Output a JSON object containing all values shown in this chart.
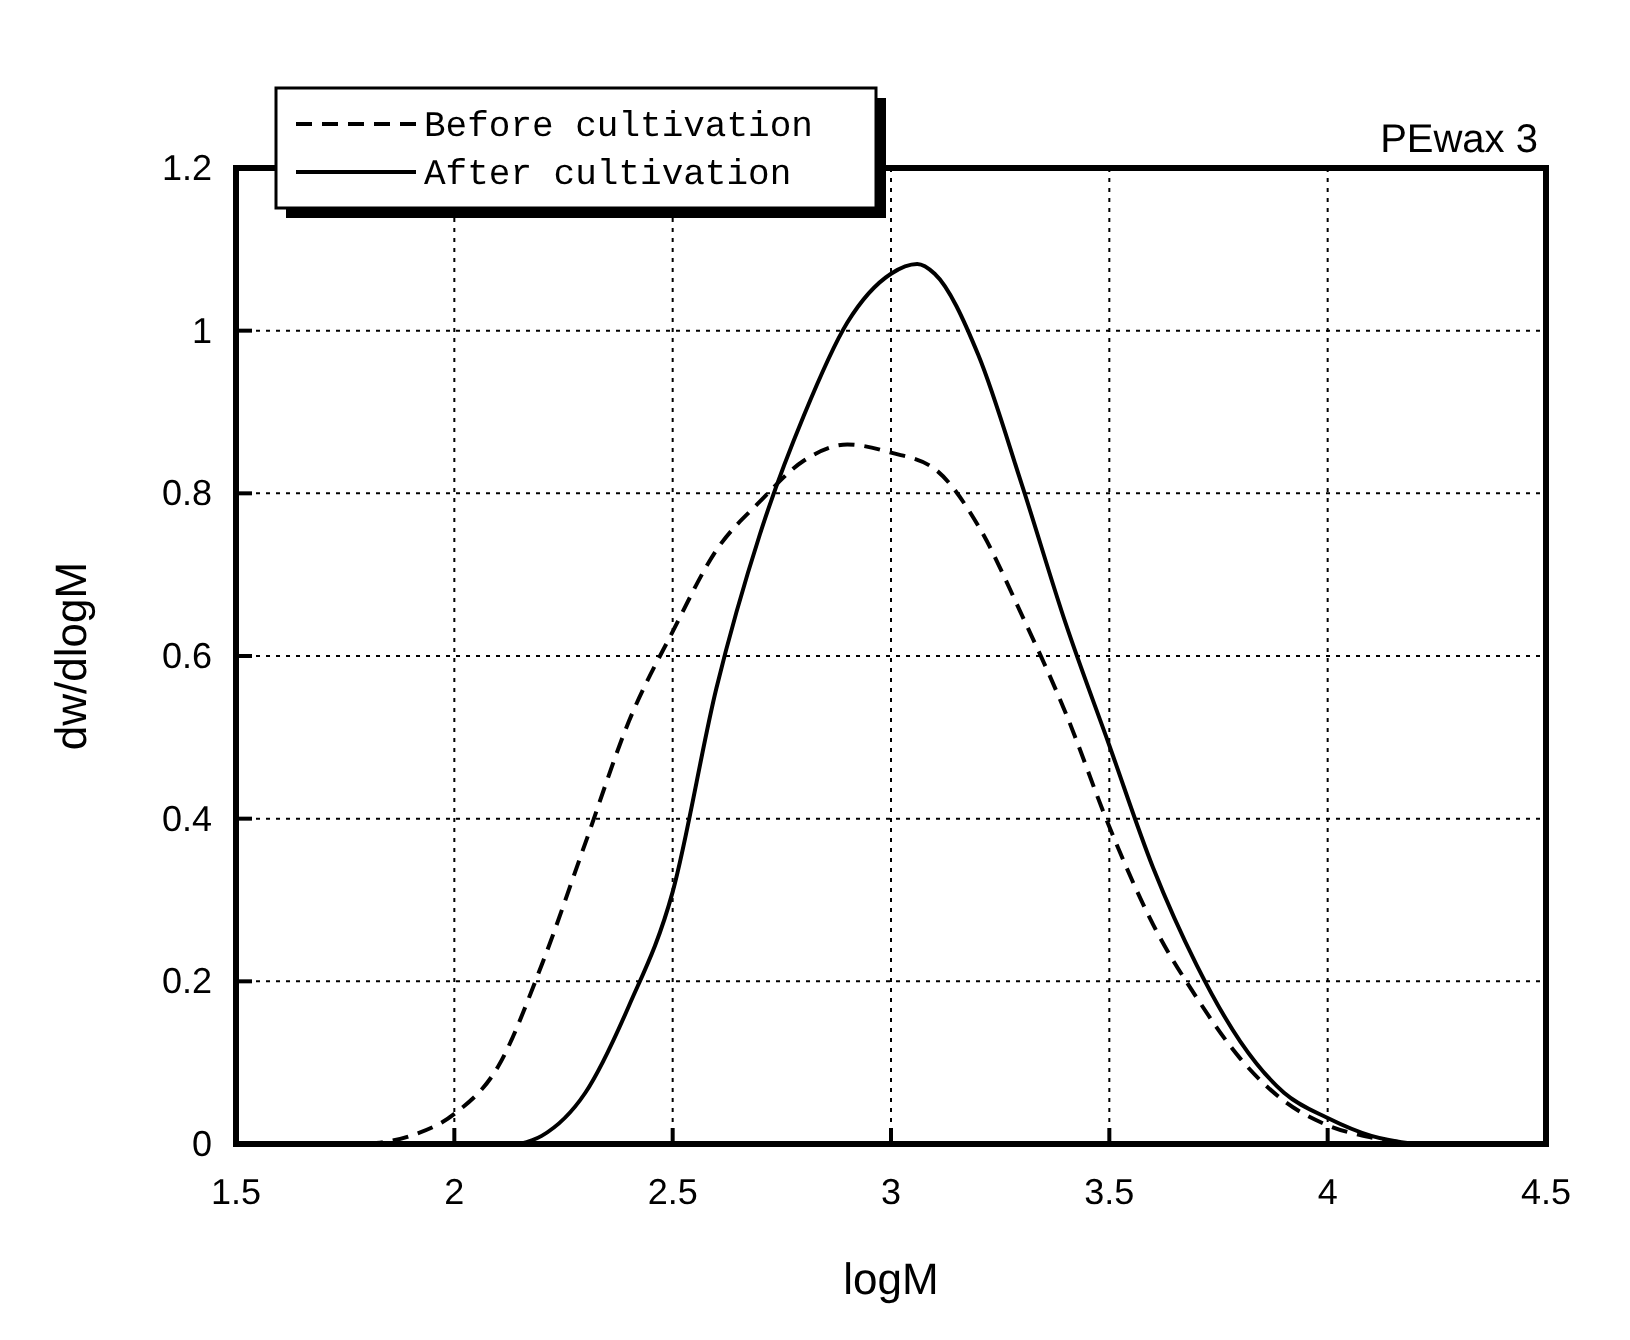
{
  "chart_data": {
    "type": "line",
    "title": "PEwax 3",
    "xlabel": "logM",
    "ylabel": "dw/dlogM",
    "xlim": [
      1.5,
      4.5
    ],
    "xticks": [
      1.5,
      2,
      2.5,
      3,
      3.5,
      4,
      4.5
    ],
    "ylim": [
      0,
      1.2
    ],
    "yticks": [
      0,
      0.2,
      0.4,
      0.6,
      0.8,
      1,
      1.2
    ],
    "grid": true,
    "legend": "top left",
    "marker": "none",
    "series": [
      {
        "name": "Before cultivation",
        "color": "#000000",
        "line_style": "dashed",
        "x": [
          1.8,
          1.9,
          2.0,
          2.1,
          2.2,
          2.3,
          2.4,
          2.5,
          2.6,
          2.7,
          2.8,
          2.9,
          3.0,
          3.1,
          3.2,
          3.3,
          3.4,
          3.5,
          3.6,
          3.7,
          3.8,
          3.9,
          4.0,
          4.1,
          4.2
        ],
        "values": [
          0,
          0.01,
          0.037,
          0.095,
          0.22,
          0.37,
          0.52,
          0.63,
          0.73,
          0.79,
          0.84,
          0.86,
          0.85,
          0.83,
          0.76,
          0.65,
          0.53,
          0.39,
          0.27,
          0.18,
          0.105,
          0.053,
          0.023,
          0.008,
          0
        ]
      },
      {
        "name": "After cultivation",
        "color": "#000000",
        "line_style": "solid",
        "x": [
          2.15,
          2.2,
          2.3,
          2.4,
          2.5,
          2.6,
          2.7,
          2.8,
          2.9,
          3.0,
          3.06,
          3.1,
          3.2,
          3.3,
          3.4,
          3.5,
          3.6,
          3.7,
          3.8,
          3.9,
          4.0,
          4.1,
          4.2
        ],
        "values": [
          0,
          0.01,
          0.063,
          0.17,
          0.31,
          0.56,
          0.75,
          0.895,
          1.01,
          1.07,
          1.082,
          1.07,
          0.97,
          0.81,
          0.64,
          0.49,
          0.34,
          0.22,
          0.126,
          0.063,
          0.032,
          0.01,
          0
        ]
      }
    ]
  }
}
